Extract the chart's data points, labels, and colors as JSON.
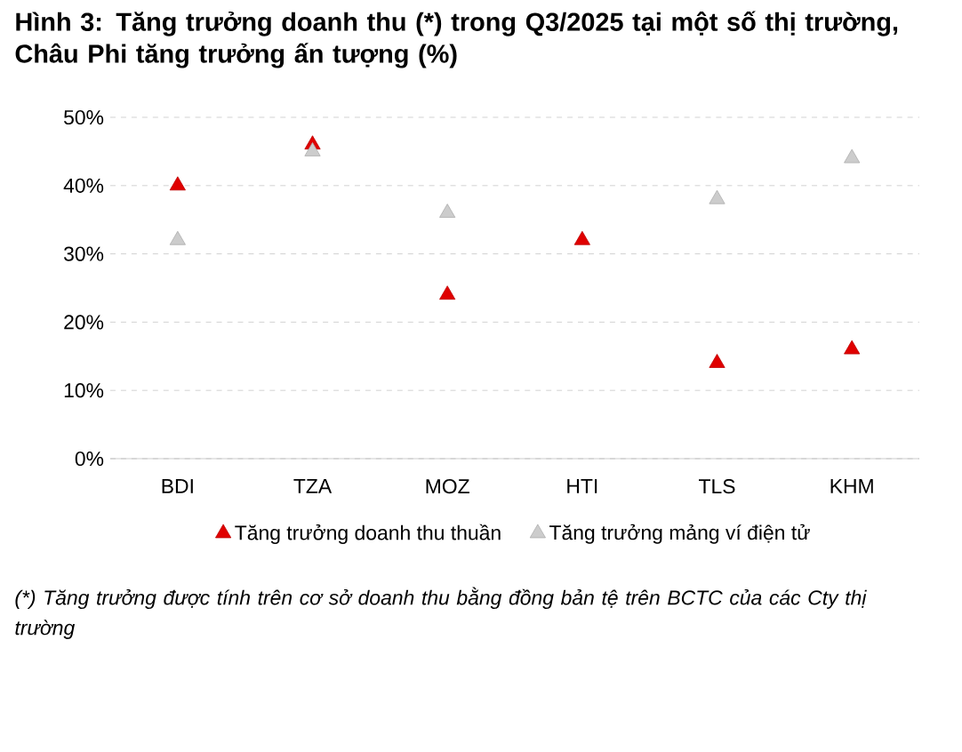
{
  "chart_data": {
    "type": "scatter",
    "title": "Hình 3: Tăng trưởng doanh thu (*) trong Q3/2025 tại một số thị trường, Châu Phi tăng trưởng ấn tượng (%)",
    "categories": [
      "BDI",
      "TZA",
      "MOZ",
      "HTI",
      "TLS",
      "KHM"
    ],
    "series": [
      {
        "name": "Tăng trưởng doanh thu thuần",
        "color": "#e00000",
        "values": [
          40,
          46,
          24,
          32,
          14,
          16
        ]
      },
      {
        "name": "Tăng trưởng mảng ví điện tử",
        "color": "#cccccc",
        "values": [
          32,
          45,
          36,
          null,
          38,
          44
        ]
      }
    ],
    "ylim": [
      0,
      50
    ],
    "yticks": [
      {
        "value": 0,
        "label": "0%"
      },
      {
        "value": 10,
        "label": "10%"
      },
      {
        "value": 20,
        "label": "20%"
      },
      {
        "value": 30,
        "label": "30%"
      },
      {
        "value": 40,
        "label": "40%"
      },
      {
        "value": 50,
        "label": "50%"
      }
    ],
    "grid": "y",
    "legend": "bottom",
    "marker": "triangle",
    "annotations": [
      "(*) Tăng trưởng được tính trên cơ sở doanh thu bằng đồng bản tệ trên BCTC của các Cty thị trường"
    ]
  }
}
